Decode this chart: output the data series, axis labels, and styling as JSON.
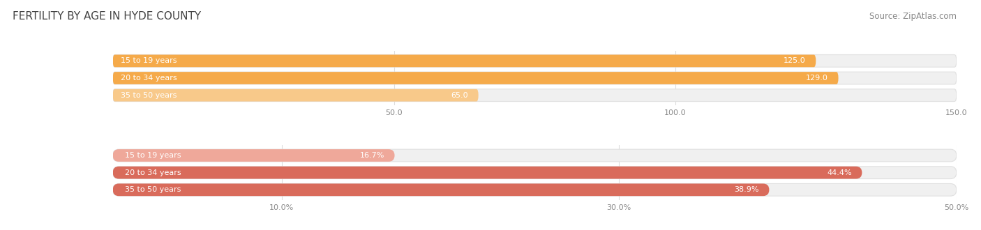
{
  "title": "FERTILITY BY AGE IN HYDE COUNTY",
  "source": "Source: ZipAtlas.com",
  "top_bars": {
    "categories": [
      "15 to 19 years",
      "20 to 34 years",
      "35 to 50 years"
    ],
    "values": [
      125.0,
      129.0,
      65.0
    ],
    "bar_colors": [
      "#F5AA4A",
      "#F5AA4A",
      "#F8C98A"
    ],
    "xlim": [
      0,
      150
    ],
    "xticks": [
      50.0,
      100.0,
      150.0
    ],
    "xtick_labels": [
      "50.0",
      "100.0",
      "150.0"
    ],
    "value_inside_threshold": 40
  },
  "bottom_bars": {
    "categories": [
      "15 to 19 years",
      "20 to 34 years",
      "35 to 50 years"
    ],
    "values": [
      16.7,
      44.4,
      38.9
    ],
    "bar_colors": [
      "#EFA89A",
      "#D96B5B",
      "#D96B5B"
    ],
    "xlim": [
      0,
      50
    ],
    "xticks": [
      10.0,
      30.0,
      50.0
    ],
    "xtick_labels": [
      "10.0%",
      "30.0%",
      "50.0%"
    ],
    "value_inside_threshold": 12
  },
  "bar_height": 0.72,
  "bar_bg_color": "#f0f0f0",
  "bar_bg_edge_color": "#e0e0e0",
  "bg_color": "#ffffff",
  "label_fontsize": 8,
  "value_fontsize": 8,
  "tick_fontsize": 8,
  "title_fontsize": 11,
  "source_fontsize": 8.5,
  "title_color": "#444444",
  "source_color": "#888888",
  "tick_color": "#888888",
  "label_text_color": "#ffffff",
  "value_inside_color": "#ffffff",
  "value_outside_color": "#666666",
  "gridline_color": "#dddddd"
}
